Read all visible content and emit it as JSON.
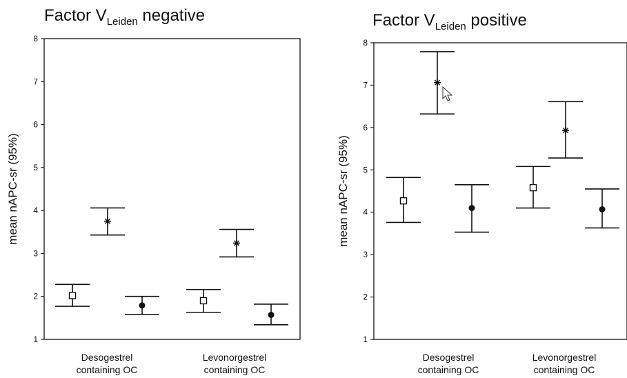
{
  "chart_data": [
    {
      "type": "errorbar",
      "title": "Factor V",
      "title_sub": "Leiden",
      "title_suffix": " negative",
      "ylabel": "mean nAPC-sr (95%)",
      "ylim": [
        1,
        8
      ],
      "yticks": [
        "1",
        "2",
        "3",
        "4",
        "5",
        "6",
        "7",
        "8"
      ],
      "grid": false,
      "groups": [
        {
          "label_lines": [
            "Desogestrel",
            "containing OC"
          ]
        },
        {
          "label_lines": [
            "Levonorgestrel",
            "containing OC"
          ]
        }
      ],
      "points": [
        {
          "group": 0,
          "marker": "square",
          "mean": 2.02,
          "low": 1.77,
          "high": 2.28
        },
        {
          "group": 0,
          "marker": "star",
          "mean": 3.75,
          "low": 3.43,
          "high": 4.06
        },
        {
          "group": 0,
          "marker": "dot",
          "mean": 1.79,
          "low": 1.58,
          "high": 2.0
        },
        {
          "group": 1,
          "marker": "square",
          "mean": 1.9,
          "low": 1.63,
          "high": 2.16
        },
        {
          "group": 1,
          "marker": "star",
          "mean": 3.24,
          "low": 2.92,
          "high": 3.56
        },
        {
          "group": 1,
          "marker": "dot",
          "mean": 1.57,
          "low": 1.34,
          "high": 1.82
        }
      ]
    },
    {
      "type": "errorbar",
      "title": "Factor V",
      "title_sub": "Leiden",
      "title_suffix": " positive",
      "ylabel": "mean nAPC-sr (95%)",
      "ylim": [
        1,
        8
      ],
      "yticks": [
        "1",
        "2",
        "3",
        "4",
        "5",
        "6",
        "7",
        "8"
      ],
      "grid": false,
      "groups": [
        {
          "label_lines": [
            "Desogestrel",
            "containing OC"
          ]
        },
        {
          "label_lines": [
            "Levonorgestrel",
            "containing OC"
          ]
        }
      ],
      "points": [
        {
          "group": 0,
          "marker": "square",
          "mean": 4.27,
          "low": 3.76,
          "high": 4.82
        },
        {
          "group": 0,
          "marker": "star",
          "mean": 7.06,
          "low": 6.32,
          "high": 7.79
        },
        {
          "group": 0,
          "marker": "dot",
          "mean": 4.1,
          "low": 3.53,
          "high": 4.65
        },
        {
          "group": 1,
          "marker": "square",
          "mean": 4.58,
          "low": 4.1,
          "high": 5.08
        },
        {
          "group": 1,
          "marker": "star",
          "mean": 5.93,
          "low": 5.28,
          "high": 6.61
        },
        {
          "group": 1,
          "marker": "dot",
          "mean": 4.07,
          "low": 3.63,
          "high": 4.55
        }
      ]
    }
  ],
  "cursor": {
    "icon": "mouse-pointer-icon"
  }
}
